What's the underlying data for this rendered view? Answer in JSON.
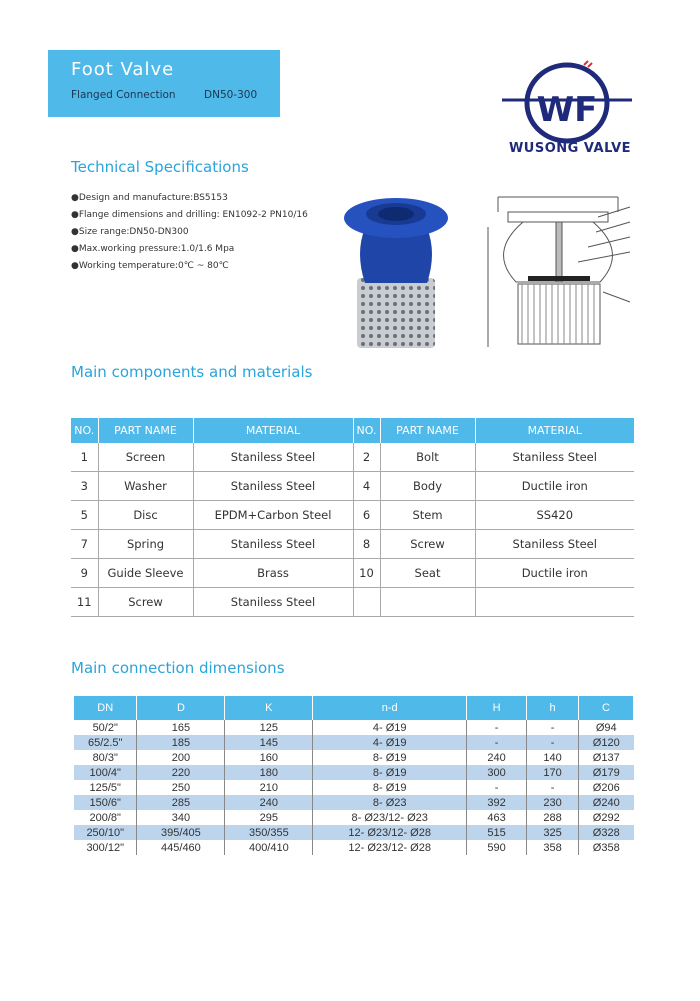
{
  "header": {
    "title": "Foot Valve",
    "subtitle": "Flanged Connection",
    "range": "DN50-300"
  },
  "logo": {
    "text": "WUSONG VALVE",
    "colors": {
      "primary": "#1f2b7a",
      "accent": "#e03030"
    }
  },
  "tech": {
    "heading": "Technical Specifications",
    "items": [
      "●Design and manufacture:BS5153",
      "●Flange dimensions and drilling: EN1092-2 PN10/16",
      "●Size range:DN50-DN300",
      "●Max.working pressure:1.0/1.6 Mpa",
      "●Working temperature:0℃ ~ 80℃"
    ]
  },
  "components": {
    "heading": "Main components and materials",
    "headers": [
      "NO.",
      "PART NAME",
      "MATERIAL",
      "NO.",
      "PART NAME",
      "MATERIAL"
    ],
    "rows": [
      [
        "1",
        "Screen",
        "Staniless Steel",
        "2",
        "Bolt",
        "Staniless Steel"
      ],
      [
        "3",
        "Washer",
        "Staniless Steel",
        "4",
        "Body",
        "Ductile iron"
      ],
      [
        "5",
        "Disc",
        "EPDM+Carbon Steel",
        "6",
        "Stem",
        "SS420"
      ],
      [
        "7",
        "Spring",
        "Staniless Steel",
        "8",
        "Screw",
        "Staniless Steel"
      ],
      [
        "9",
        "Guide Sleeve",
        "Brass",
        "10",
        "Seat",
        "Ductile iron"
      ],
      [
        "11",
        "Screw",
        "Staniless Steel",
        "",
        "",
        ""
      ]
    ]
  },
  "dimensions": {
    "heading": "Main connection dimensions",
    "headers": [
      "DN",
      "D",
      "K",
      "n-d",
      "H",
      "h",
      "C"
    ],
    "rows": [
      [
        "50/2\"",
        "165",
        "125",
        "4- Ø19",
        "-",
        "-",
        "Ø94"
      ],
      [
        "65/2.5\"",
        "185",
        "145",
        "4- Ø19",
        "-",
        "-",
        "Ø120"
      ],
      [
        "80/3\"",
        "200",
        "160",
        "8- Ø19",
        "240",
        "140",
        "Ø137"
      ],
      [
        "100/4\"",
        "220",
        "180",
        "8- Ø19",
        "300",
        "170",
        "Ø179"
      ],
      [
        "125/5\"",
        "250",
        "210",
        "8- Ø19",
        "-",
        "-",
        "Ø206"
      ],
      [
        "150/6\"",
        "285",
        "240",
        "8- Ø23",
        "392",
        "230",
        "Ø240"
      ],
      [
        "200/8\"",
        "340",
        "295",
        "8- Ø23/12- Ø23",
        "463",
        "288",
        "Ø292"
      ],
      [
        "250/10\"",
        "395/405",
        "350/355",
        "12- Ø23/12- Ø28",
        "515",
        "325",
        "Ø328"
      ],
      [
        "300/12\"",
        "445/460",
        "400/410",
        "12- Ø23/12- Ø28",
        "590",
        "358",
        "Ø358"
      ]
    ]
  },
  "colors": {
    "accent": "#4fb9ea",
    "heading": "#2aa4dc",
    "row_alt": "#bcd5ec"
  }
}
